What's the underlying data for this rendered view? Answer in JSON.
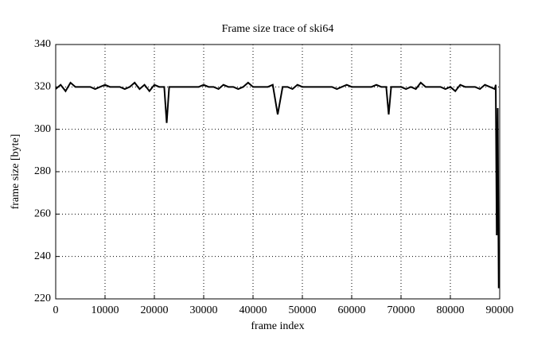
{
  "chart_data": {
    "type": "line",
    "title": "Frame size trace of ski64",
    "x_label": "frame index",
    "y_label": "frame size [byte]",
    "x": [
      0,
      1000,
      2000,
      3000,
      4000,
      5000,
      6000,
      7000,
      8000,
      9000,
      10000,
      11000,
      12000,
      13000,
      14000,
      15000,
      16000,
      17000,
      18000,
      19000,
      20000,
      21000,
      22000,
      22500,
      23000,
      24000,
      25000,
      26000,
      27000,
      28000,
      29000,
      30000,
      31000,
      32000,
      33000,
      34000,
      35000,
      36000,
      37000,
      38000,
      39000,
      40000,
      41000,
      42000,
      43000,
      44000,
      45000,
      46000,
      47000,
      48000,
      49000,
      50000,
      51000,
      52000,
      53000,
      54000,
      55000,
      56000,
      57000,
      58000,
      59000,
      60000,
      61000,
      62000,
      63000,
      64000,
      65000,
      66000,
      67000,
      67500,
      68000,
      69000,
      70000,
      71000,
      72000,
      73000,
      74000,
      75000,
      76000,
      77000,
      78000,
      79000,
      80000,
      81000,
      82000,
      83000,
      84000,
      85000,
      86000,
      87000,
      88000,
      89000,
      89200,
      89400,
      89600,
      89800
    ],
    "series": [
      {
        "name": "ski64",
        "color": "#000000",
        "values": [
          319,
          321,
          318,
          322,
          320,
          320,
          320,
          320,
          319,
          320,
          321,
          320,
          320,
          320,
          319,
          320,
          322,
          319,
          321,
          318,
          321,
          320,
          320,
          303,
          320,
          320,
          320,
          320,
          320,
          320,
          320,
          321,
          320,
          320,
          319,
          321,
          320,
          320,
          319,
          320,
          322,
          320,
          320,
          320,
          320,
          321,
          307,
          320,
          320,
          319,
          321,
          320,
          320,
          320,
          320,
          320,
          320,
          320,
          319,
          320,
          321,
          320,
          320,
          320,
          320,
          320,
          321,
          320,
          320,
          307,
          320,
          320,
          320,
          319,
          320,
          319,
          322,
          320,
          320,
          320,
          320,
          319,
          320,
          318,
          321,
          320,
          320,
          320,
          319,
          321,
          320,
          319,
          321,
          250,
          310,
          225
        ]
      }
    ],
    "xlim": [
      0,
      90000
    ],
    "ylim": [
      220,
      340
    ],
    "xticks": [
      0,
      10000,
      20000,
      30000,
      40000,
      50000,
      60000,
      70000,
      80000,
      90000
    ],
    "yticks": [
      220,
      240,
      260,
      280,
      300,
      320,
      340
    ],
    "grid": true
  }
}
